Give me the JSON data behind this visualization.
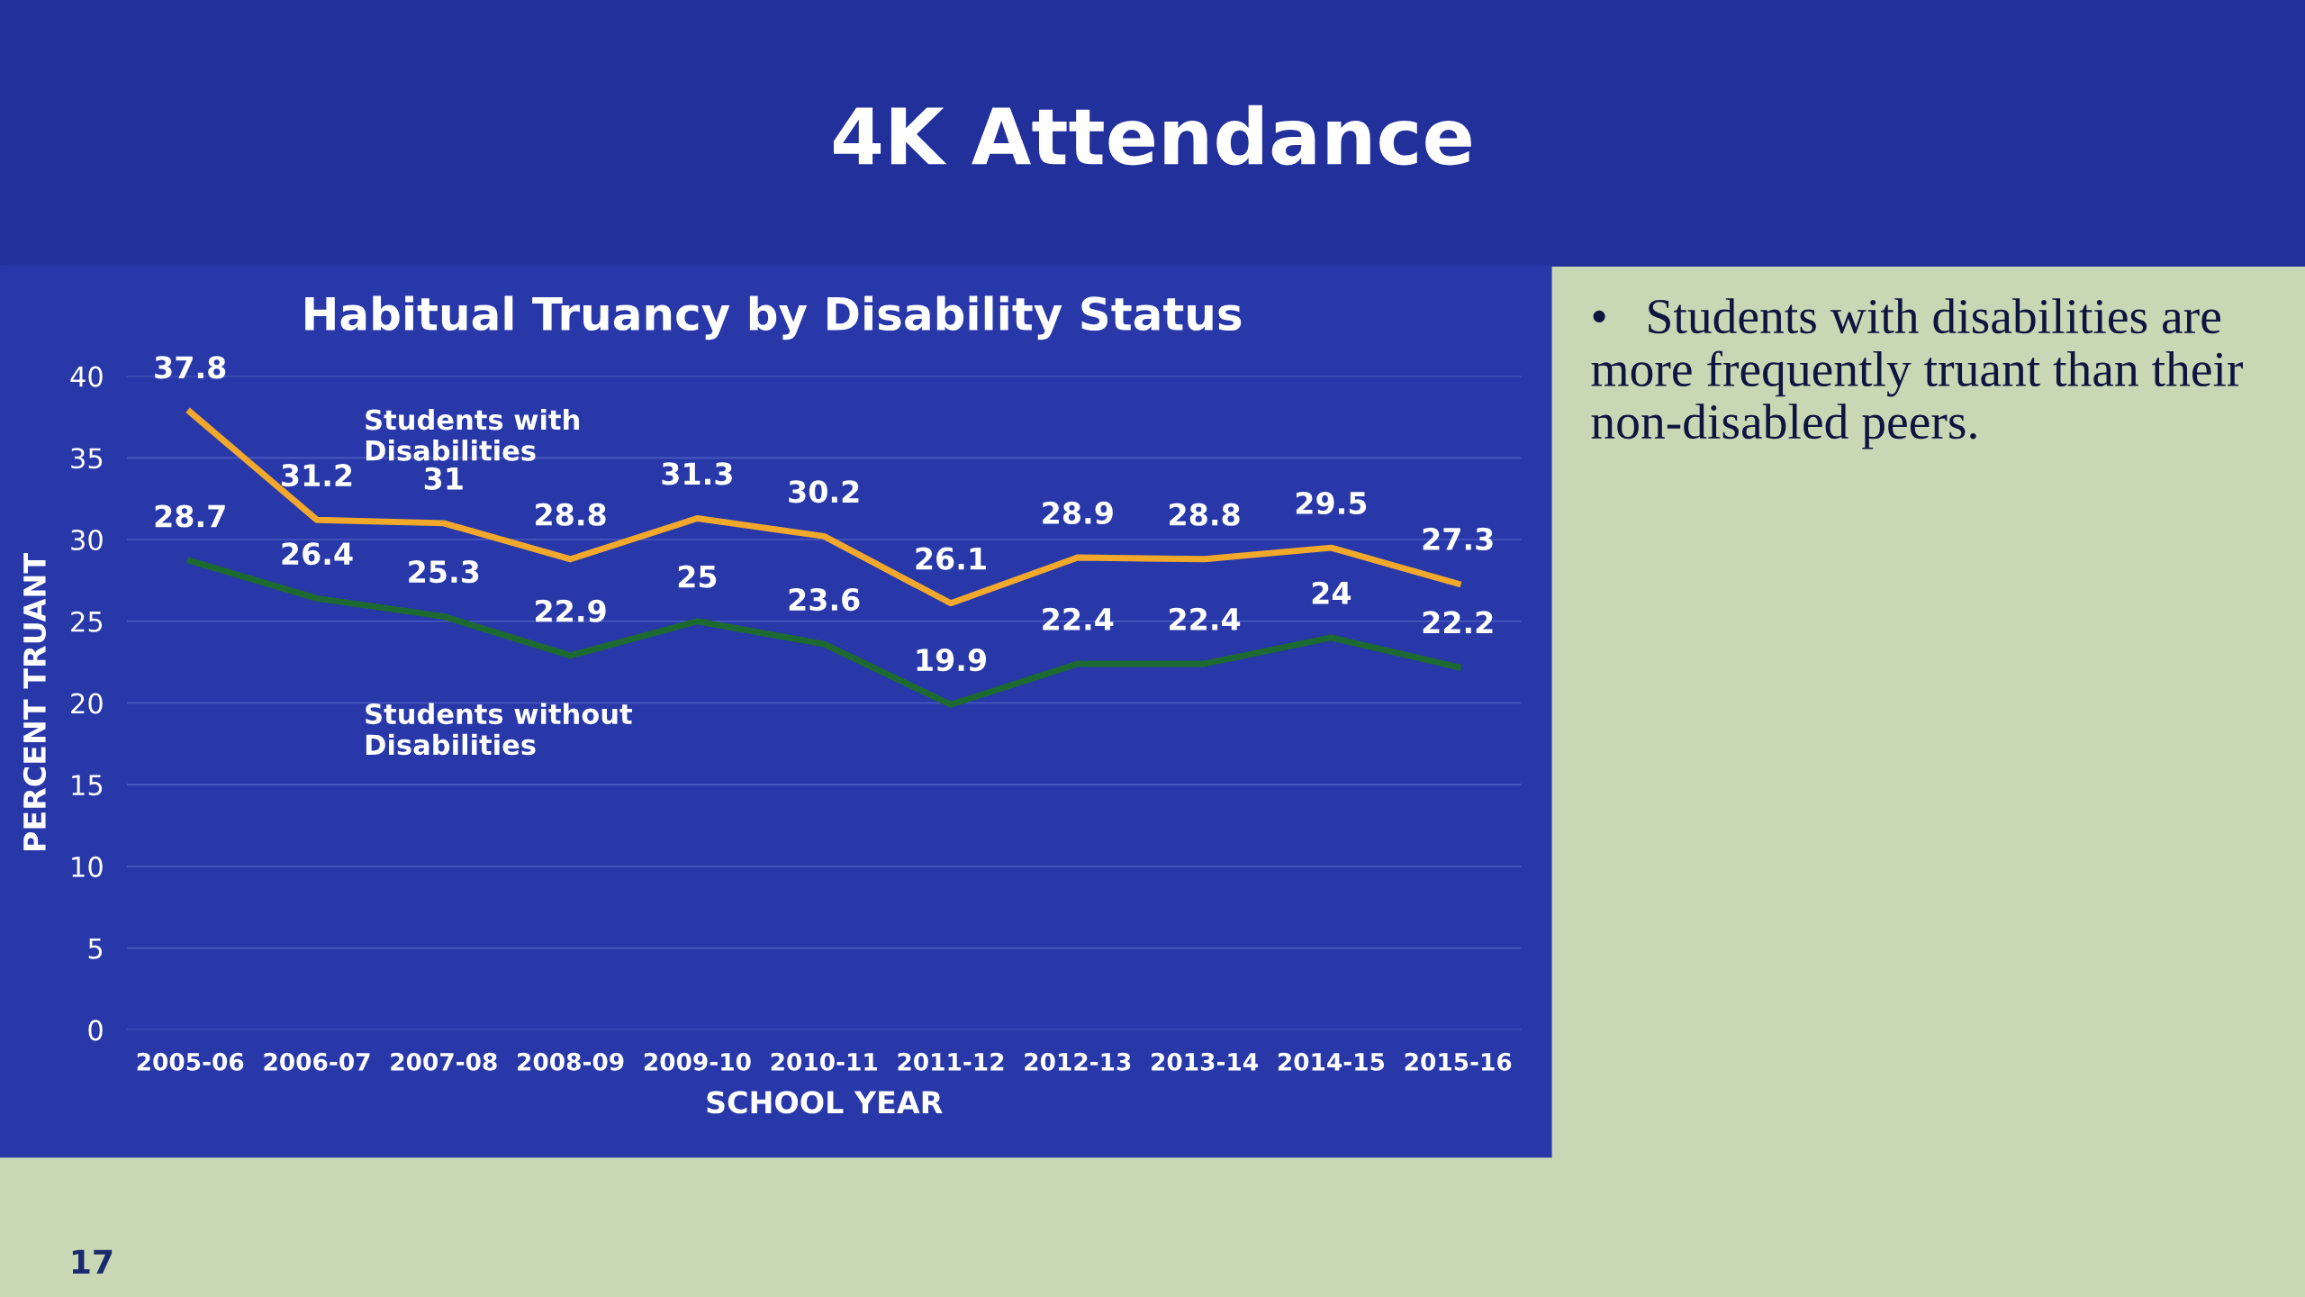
{
  "chart_data": {
    "type": "line",
    "title": "4K Attendance",
    "subtitle": "Habitual Truancy by Disability Status",
    "xlabel": "SCHOOL YEAR",
    "ylabel": "PERCENT TRUANT",
    "categories": [
      "2005-06",
      "2006-07",
      "2007-08",
      "2008-09",
      "2009-10",
      "2010-11",
      "2011-12",
      "2012-13",
      "2013-14",
      "2014-15",
      "2015-16"
    ],
    "series": [
      {
        "name": "Students with\nDisabilities",
        "color": "#f2a82a",
        "values": [
          37.8,
          31.2,
          31,
          28.8,
          31.3,
          30.2,
          26.1,
          28.9,
          28.8,
          29.5,
          27.3
        ]
      },
      {
        "name": "Students without\nDisabilities",
        "color": "#1d6a30",
        "values": [
          28.7,
          26.4,
          25.3,
          22.9,
          25,
          23.6,
          19.9,
          22.4,
          22.4,
          24,
          22.2
        ]
      }
    ],
    "ylim": [
      0,
      40
    ],
    "yticks": [
      0,
      5,
      10,
      15,
      20,
      25,
      30,
      35,
      40
    ],
    "grid": "y",
    "legend": false,
    "marker": "none",
    "line_style": "solid",
    "data_labels": true,
    "annotations": [
      "•   Students with disabilities are more frequently truant than their non-disabled peers.",
      "17"
    ]
  }
}
